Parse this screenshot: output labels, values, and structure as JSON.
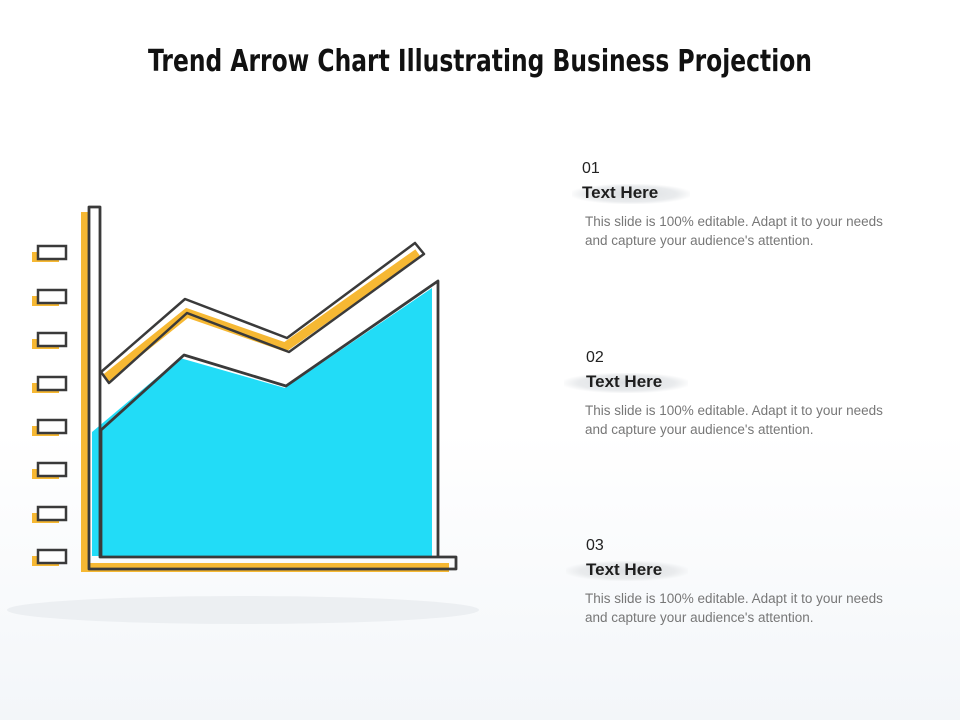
{
  "title": "Trend Arrow Chart Illustrating Business Projection",
  "colors": {
    "area_fill": "#22dcf7",
    "accent_yellow": "#f6b833",
    "outline": "#3a3a3a",
    "shadow": "#eceff2"
  },
  "icons": [
    "checklist-box-icon",
    "trend-arrow-icon",
    "area-chart-icon"
  ],
  "points": [
    {
      "number": "01",
      "heading": "Text Here",
      "description": "This slide is 100% editable. Adapt it to your needs and capture your audience's attention."
    },
    {
      "number": "02",
      "heading": "Text Here",
      "description": "This slide is 100% editable. Adapt it to your needs and capture your audience's attention."
    },
    {
      "number": "03",
      "heading": "Text Here",
      "description": "This slide is 100% editable. Adapt it to your needs and capture your audience's attention."
    }
  ]
}
